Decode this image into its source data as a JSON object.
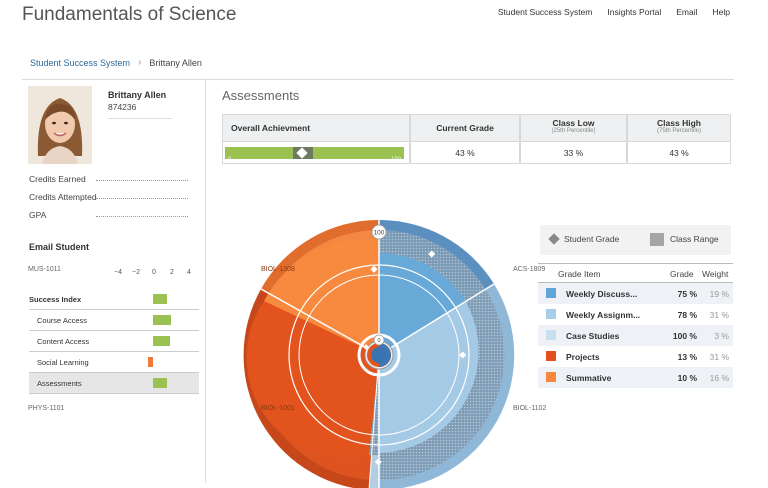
{
  "header": {
    "title": "Fundamentals of Science",
    "nav": [
      "Student Success System",
      "Insights Portal",
      "Email",
      "Help"
    ]
  },
  "breadcrumb": {
    "root": "Student Success System",
    "current": "Brittany Allen"
  },
  "student": {
    "name": "Brittany Allen",
    "id": "874236",
    "stats": [
      "Credits Earned",
      "Credits Attempted",
      "GPA"
    ],
    "email_label": "Email Student"
  },
  "success_index": {
    "axis_ticks": [
      "−4",
      "−2",
      "0",
      "2",
      "4"
    ],
    "rows": [
      {
        "label": "Success Index",
        "value": 1.5,
        "bold": true
      },
      {
        "label": "Course Access",
        "value": 2.0
      },
      {
        "label": "Content Access",
        "value": 1.9
      },
      {
        "label": "Social Learning",
        "value": -0.6
      },
      {
        "label": "Assessments",
        "value": 1.6
      }
    ]
  },
  "assessments": {
    "title": "Assessments",
    "table": {
      "headers": {
        "overall": "Overall Achievment",
        "current": "Current Grade",
        "low": "Class Low",
        "low_sub": "(25th Percentile)",
        "high": "Class High",
        "high_sub": "(75th Percentile)"
      },
      "bar_min": "0",
      "bar_max": "100",
      "achievement_value": 43,
      "current_grade": "43 %",
      "class_low": "33 %",
      "class_high": "43 %"
    },
    "legend": {
      "student_grade": "Student Grade",
      "class_range": "Class Range"
    },
    "grade_items_headers": {
      "item": "Grade Item",
      "grade": "Grade",
      "weight": "Weight"
    },
    "grade_items": [
      {
        "name": "Weekly Discuss...",
        "grade": "75 %",
        "weight": "19 %",
        "color": "#5fa6d6"
      },
      {
        "name": "Weekly Assignm...",
        "grade": "78 %",
        "weight": "31 %",
        "color": "#a8cde8"
      },
      {
        "name": "Case Studies",
        "grade": "100 %",
        "weight": "3 %",
        "color": "#c8dff0"
      },
      {
        "name": "Projects",
        "grade": "13 %",
        "weight": "31 %",
        "color": "#e2511f"
      },
      {
        "name": "Summative",
        "grade": "10 %",
        "weight": "16 %",
        "color": "#f7873e"
      }
    ],
    "radial_labels": {
      "top": "100",
      "center": "0",
      "left_top": "MUS-1011",
      "left_bottom": "PHYS-1101",
      "right_top": "ACS-1809",
      "right_bottom": "BIOL-1102",
      "inner_top": "BIOL-1308",
      "inner_bottom": "BIOL-1001"
    }
  }
}
